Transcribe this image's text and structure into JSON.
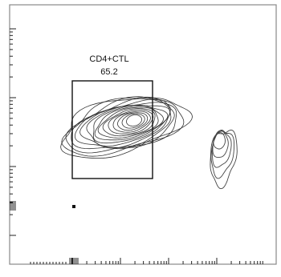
{
  "chart_data": {
    "type": "contour",
    "title": "",
    "xlabel": "",
    "ylabel": "",
    "x_axis": {
      "scale": "log",
      "tick_labels": []
    },
    "y_axis": {
      "scale": "log",
      "tick_labels": []
    },
    "gate": {
      "name": "CD4+CTL",
      "value": "65.2",
      "shape": "rectangle"
    },
    "populations": [
      {
        "name": "",
        "level_count": 16,
        "color": "#333333"
      },
      {
        "name": "",
        "level_count": 5,
        "color": "#444444"
      }
    ],
    "outlier_events": 1,
    "legend": "none",
    "grid": false
  }
}
